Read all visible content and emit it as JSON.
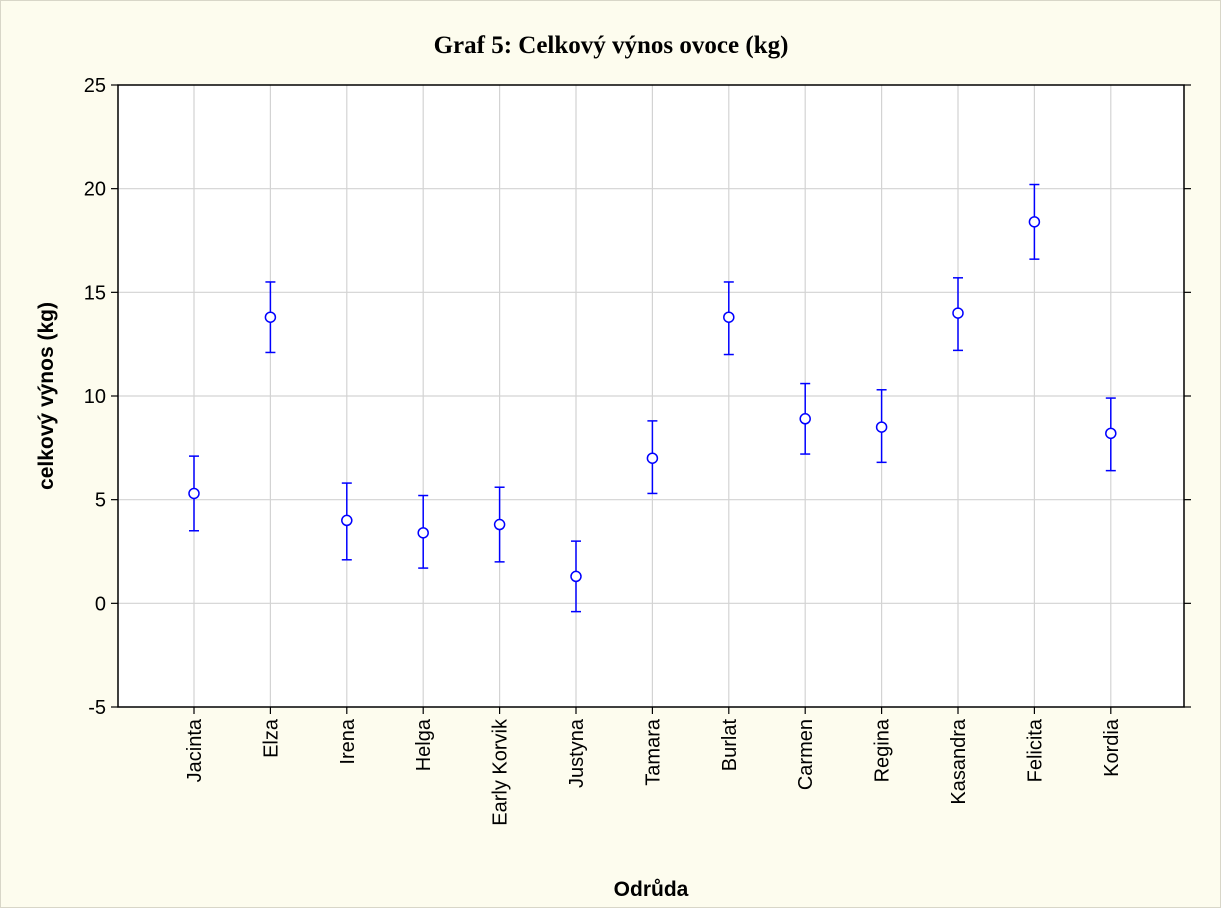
{
  "chart_data": {
    "type": "scatter",
    "title": "Graf 5: Celkový výnos ovoce (kg)",
    "xlabel": "Odrůda",
    "ylabel": "celkový výnos (kg)",
    "ylim": [
      -5,
      25
    ],
    "yticks": [
      -5,
      0,
      5,
      10,
      15,
      20,
      25
    ],
    "grid": true,
    "categories": [
      "Jacinta",
      "Elza",
      "Irena",
      "Helga",
      "Early Korvik",
      "Justyna",
      "Tamara",
      "Burlat",
      "Carmen",
      "Regina",
      "Kasandra",
      "Felicita",
      "Kordia"
    ],
    "series": [
      {
        "values": [
          5.3,
          13.8,
          4.0,
          3.4,
          3.8,
          1.3,
          7.0,
          13.8,
          8.9,
          8.5,
          14.0,
          18.4,
          8.2
        ],
        "lower": [
          3.5,
          12.1,
          2.1,
          1.7,
          2.0,
          -0.4,
          5.3,
          12.0,
          7.2,
          6.8,
          12.2,
          16.6,
          6.4
        ],
        "upper": [
          7.1,
          15.5,
          5.8,
          5.2,
          5.6,
          3.0,
          8.8,
          15.5,
          10.6,
          10.3,
          15.7,
          20.2,
          9.9
        ],
        "color": "#0000ff"
      }
    ],
    "colors": {
      "marker": "#0000ff",
      "grid": "#d3d3d3",
      "axis": "#000000",
      "background": "#fdfcee",
      "plot_background": "#ffffff"
    }
  }
}
